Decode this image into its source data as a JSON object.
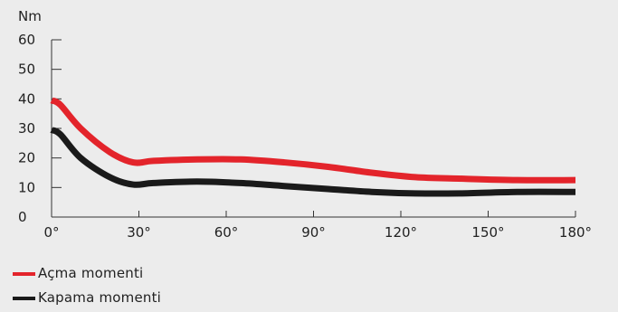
{
  "chart_data": {
    "type": "line",
    "title": "",
    "xlabel": "",
    "ylabel": "Nm",
    "x_unit_suffix": "°",
    "xlim": [
      0,
      180
    ],
    "ylim": [
      0,
      60
    ],
    "x_ticks": [
      0,
      30,
      60,
      90,
      120,
      150,
      180
    ],
    "y_ticks": [
      0,
      10,
      20,
      30,
      40,
      50,
      60
    ],
    "grid": false,
    "legend_position": "bottom-left",
    "series": [
      {
        "name": "Açma momenti",
        "color": "#e3242b",
        "x": [
          0,
          3,
          10,
          20,
          28,
          35,
          50,
          65,
          80,
          95,
          110,
          125,
          140,
          160,
          180
        ],
        "y": [
          39.5,
          38,
          30,
          22,
          18.5,
          19,
          19.5,
          19.5,
          18.5,
          17,
          15,
          13.5,
          13,
          12.5,
          12.5
        ]
      },
      {
        "name": "Kapama momenti",
        "color": "#1a1a1a",
        "x": [
          0,
          3,
          10,
          20,
          28,
          35,
          50,
          65,
          80,
          95,
          110,
          125,
          140,
          160,
          180
        ],
        "y": [
          29.5,
          28,
          20,
          13.5,
          11,
          11.5,
          12,
          11.5,
          10.5,
          9.5,
          8.5,
          8,
          8,
          8.5,
          8.5
        ]
      }
    ]
  }
}
